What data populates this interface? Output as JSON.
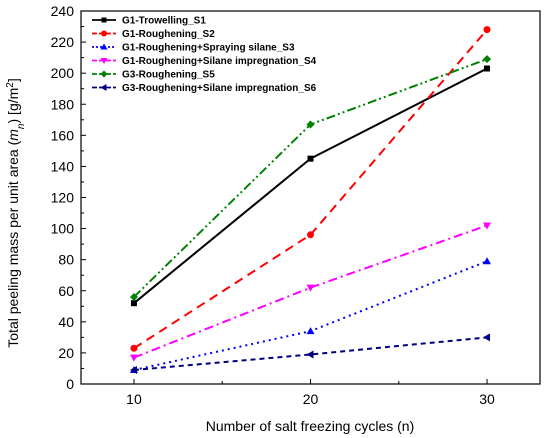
{
  "chart_data": {
    "type": "line",
    "xlabel": "Number of salt freezing cycles (n)",
    "ylabel": {
      "prefix": "Total peeling mass per unit area (",
      "symbol": "m",
      "subscript": "n",
      "suffix": ") [g/m",
      "superscript": "2",
      "end": "]"
    },
    "x": [
      10,
      20,
      30
    ],
    "xlim": [
      7,
      33
    ],
    "ylim": [
      0,
      240
    ],
    "xticks": [
      "10",
      "20",
      "30"
    ],
    "yticks": [
      "0",
      "20",
      "40",
      "60",
      "80",
      "100",
      "120",
      "140",
      "160",
      "180",
      "200",
      "220",
      "240"
    ],
    "grid": false,
    "legend_position": "top-left",
    "series": [
      {
        "name": "G1-Trowelling_S1",
        "values": [
          52,
          145,
          203
        ],
        "color": "#000000",
        "dash": "solid",
        "marker": "square"
      },
      {
        "name": "G1-Roughening_S2",
        "values": [
          23,
          96,
          228
        ],
        "color": "#ff0000",
        "dash": "dash",
        "marker": "circle"
      },
      {
        "name": "G1-Roughening+Spraying silane_S3",
        "values": [
          9,
          34,
          79
        ],
        "color": "#0000ff",
        "dash": "dot",
        "marker": "triangle-up"
      },
      {
        "name": "G1-Roughening+Silane impregnation_S4",
        "values": [
          17,
          62,
          102
        ],
        "color": "#ff00ff",
        "dash": "dashdot",
        "marker": "triangle-down"
      },
      {
        "name": "G3-Roughening_S5",
        "values": [
          56,
          167,
          209
        ],
        "color": "#008000",
        "dash": "dashdotdot",
        "marker": "diamond"
      },
      {
        "name": "G3-Roughening+Silane impregnation_S6",
        "values": [
          9,
          19,
          30
        ],
        "color": "#000080",
        "dash": "shortdash",
        "marker": "triangle-left"
      }
    ]
  }
}
